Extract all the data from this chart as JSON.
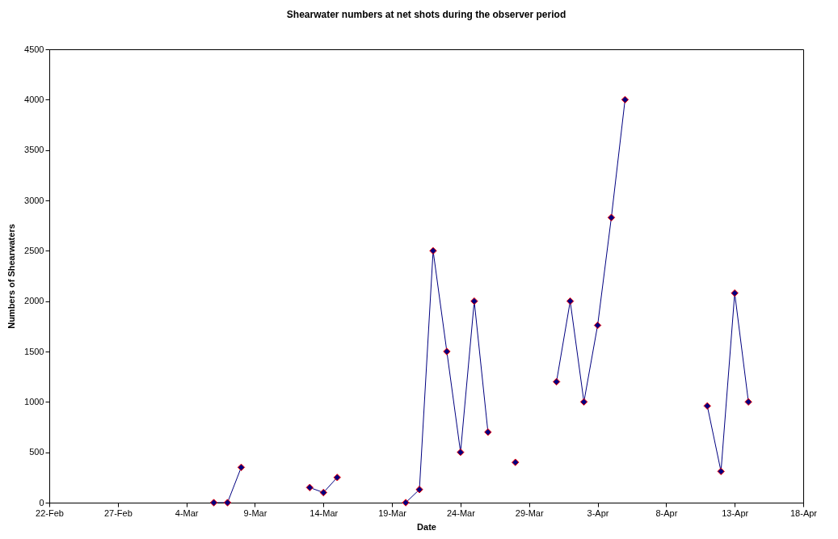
{
  "chart_data": {
    "type": "line",
    "title": "Shearwater numbers at net shots during the observer period",
    "xlabel": "Date",
    "ylabel": "Numbers of Shearwaters",
    "x": [
      "--03-06",
      "--03-07",
      "--03-08",
      "--03-09",
      "--03-13",
      "--03-14",
      "--03-15",
      "--03-16",
      "--03-20",
      "--03-21",
      "--03-22",
      "--03-23",
      "--03-24",
      "--03-25",
      "--03-26",
      "--03-27",
      "--03-28",
      "--03-29",
      "--03-31",
      "--04-01",
      "--04-02",
      "--04-03",
      "--04-04",
      "--04-05",
      "--04-06",
      "--04-11",
      "--04-12",
      "--04-13",
      "--04-14"
    ],
    "series": [
      {
        "color": "#000080",
        "values": [
          0,
          0,
          350,
          null,
          150,
          100,
          250,
          null,
          0,
          130,
          2500,
          1500,
          500,
          2000,
          700,
          null,
          400,
          null,
          1200,
          2000,
          1000,
          1760,
          2830,
          4000,
          null,
          960,
          310,
          2080,
          1000
        ]
      }
    ],
    "xlim": [
      "--02-22",
      "--04-18"
    ],
    "xticks": [
      {
        "value": "--02-22",
        "label": "22-Feb"
      },
      {
        "value": "--02-27",
        "label": "27-Feb"
      },
      {
        "value": "--03-04",
        "label": "4-Mar"
      },
      {
        "value": "--03-09",
        "label": "9-Mar"
      },
      {
        "value": "--03-14",
        "label": "14-Mar"
      },
      {
        "value": "--03-19",
        "label": "19-Mar"
      },
      {
        "value": "--03-24",
        "label": "24-Mar"
      },
      {
        "value": "--03-29",
        "label": "29-Mar"
      },
      {
        "value": "--04-03",
        "label": "3-Apr"
      },
      {
        "value": "--04-08",
        "label": "8-Apr"
      },
      {
        "value": "--04-13",
        "label": "13-Apr"
      },
      {
        "value": "--04-18",
        "label": "18-Apr"
      }
    ],
    "ylim": [
      0,
      4500
    ],
    "yticks": [
      0,
      500,
      1000,
      1500,
      2000,
      2500,
      3000,
      3500,
      4000,
      4500
    ],
    "marker": "diamond",
    "line_style": "solid",
    "grid": false,
    "legend": false
  }
}
